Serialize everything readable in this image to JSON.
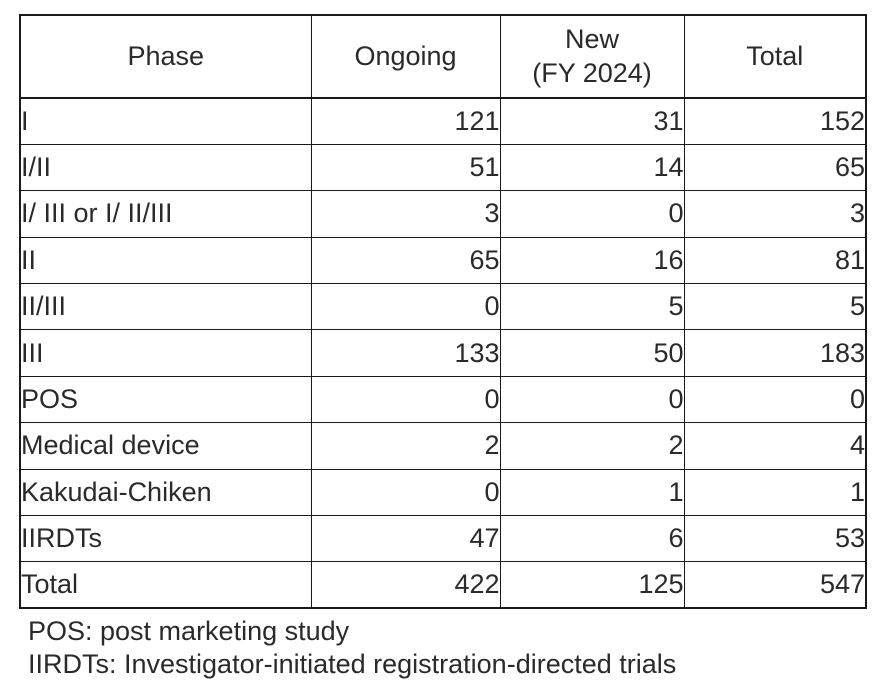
{
  "table": {
    "columns": [
      "Phase",
      "Ongoing",
      "New\n(FY 2024)",
      "Total"
    ],
    "rows": [
      {
        "phase": "I",
        "ongoing": "121",
        "new": "31",
        "total": "152"
      },
      {
        "phase": "I/II",
        "ongoing": "51",
        "new": "14",
        "total": "65"
      },
      {
        "phase": "I/ III or I/ II/III",
        "ongoing": "3",
        "new": "0",
        "total": "3"
      },
      {
        "phase": "II",
        "ongoing": "65",
        "new": "16",
        "total": "81"
      },
      {
        "phase": "II/III",
        "ongoing": "0",
        "new": "5",
        "total": "5"
      },
      {
        "phase": "III",
        "ongoing": "133",
        "new": "50",
        "total": "183"
      },
      {
        "phase": "POS",
        "ongoing": "0",
        "new": "0",
        "total": "0"
      },
      {
        "phase": "Medical device",
        "ongoing": "2",
        "new": "2",
        "total": "4"
      },
      {
        "phase": "Kakudai-Chiken",
        "ongoing": "0",
        "new": "1",
        "total": "1"
      },
      {
        "phase": "IIRDTs",
        "ongoing": "47",
        "new": "6",
        "total": "53"
      },
      {
        "phase": "Total",
        "ongoing": "422",
        "new": "125",
        "total": "547"
      }
    ]
  },
  "footnotes": [
    "POS: post marketing study",
    "IIRDTs: Investigator-initiated registration-directed trials"
  ],
  "colors": {
    "text": "#2a2a2a",
    "border": "#1a1a1a",
    "background": "#ffffff"
  }
}
